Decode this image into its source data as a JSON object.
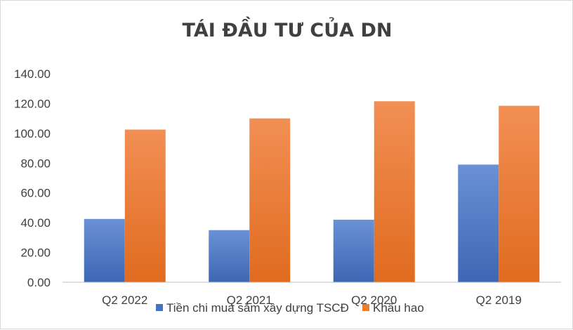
{
  "chart_data": {
    "type": "bar",
    "title": "TÁI ĐẦU TƯ CỦA DN",
    "categories": [
      "Q2 2022",
      "Q2 2021",
      "Q2 2020",
      "Q2 2019"
    ],
    "series": [
      {
        "name": "Tiền chi mua sắm xây dựng TSCĐ",
        "values": [
          42.5,
          35.0,
          42.0,
          79.0
        ],
        "color": "#4472c4"
      },
      {
        "name": "Khấu hao",
        "values": [
          102.5,
          110.0,
          121.5,
          118.5
        ],
        "color": "#ed7d31"
      }
    ],
    "ylim": [
      0,
      140
    ],
    "yticks": [
      "0.00",
      "20.00",
      "40.00",
      "60.00",
      "80.00",
      "100.00",
      "120.00",
      "140.00"
    ],
    "ytick_values": [
      0,
      20,
      40,
      60,
      80,
      100,
      120,
      140
    ],
    "grid": false,
    "legend": "bottom"
  }
}
